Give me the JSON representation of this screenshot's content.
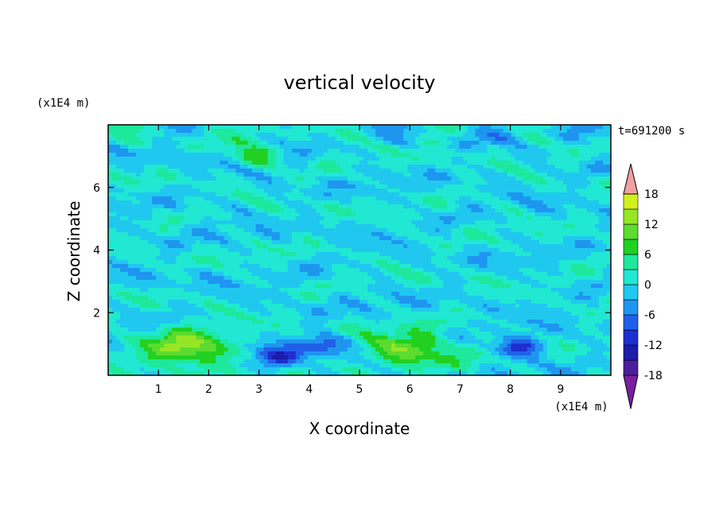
{
  "chart_data": {
    "type": "heatmap",
    "title": "vertical velocity",
    "xlabel": "X coordinate",
    "ylabel": "Z coordinate",
    "x_unit": "(x1E4 m)",
    "y_unit": "(x1E4 m)",
    "time_label": "t=691200 s",
    "xlim": [
      0,
      10
    ],
    "ylim": [
      0,
      8
    ],
    "xticks": [
      "1",
      "2",
      "3",
      "4",
      "5",
      "6",
      "7",
      "8",
      "9"
    ],
    "yticks": [
      "2",
      "4",
      "6"
    ],
    "colorbar": {
      "min": -21,
      "max": 21,
      "step": 3,
      "extend": "both",
      "tick_labels": [
        "18",
        "12",
        "6",
        "0",
        "-6",
        "-12",
        "-18"
      ],
      "colors": [
        "#7a1fa0",
        "#4b1e9c",
        "#1c1ca8",
        "#1e2ed0",
        "#2060e8",
        "#1e96f0",
        "#20c8f0",
        "#20e8d2",
        "#1ee89c",
        "#22d022",
        "#5cdc2e",
        "#96e628",
        "#d2f01e",
        "#f0f01e",
        "#f0c81e",
        "#f09a1e",
        "#f0781e",
        "#f04e1e",
        "#e81e1e",
        "#f0a0a0"
      ]
    },
    "field_features": [
      {
        "kind": "updraft",
        "x": 1.6,
        "z": 0.85,
        "value": 13
      },
      {
        "kind": "updraft",
        "x": 6.0,
        "z": 0.8,
        "value": 11
      },
      {
        "kind": "updraft",
        "x": 2.95,
        "z": 7.0,
        "value": 8
      },
      {
        "kind": "downdraft",
        "x": 3.4,
        "z": 0.55,
        "value": -12
      },
      {
        "kind": "downdraft",
        "x": 4.3,
        "z": 1.0,
        "value": -9
      },
      {
        "kind": "downdraft",
        "x": 8.2,
        "z": 0.9,
        "value": -12
      }
    ]
  }
}
